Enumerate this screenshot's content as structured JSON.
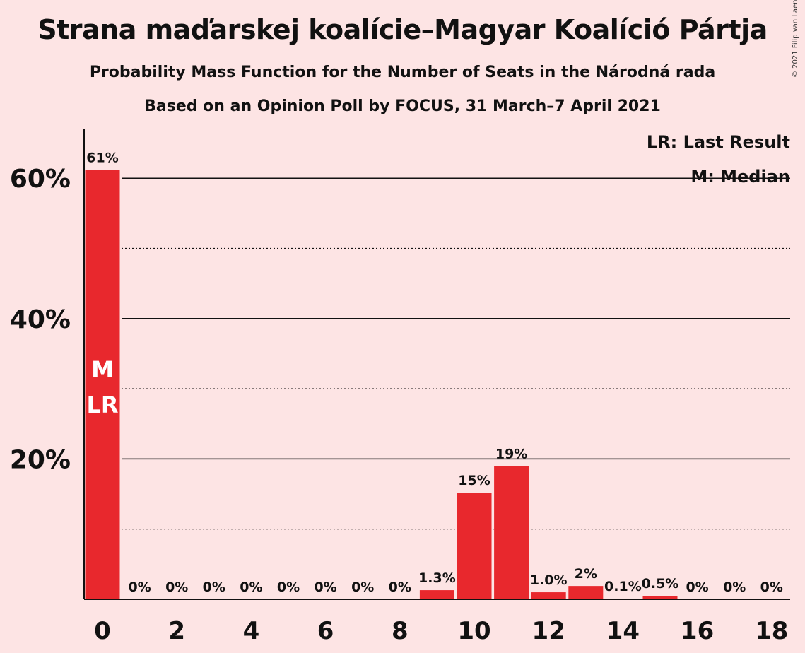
{
  "title": "Strana maďarskej koalície–Magyar Koalíció Pártja",
  "subtitle": "Probability Mass Function for the Number of Seats in the Národná rada",
  "source_line": "Based on an Opinion Poll by FOCUS, 31 March–7 April 2021",
  "copyright": "© 2021 Filip van Laenen",
  "legend": {
    "last_result": "LR: Last Result",
    "median": "M: Median"
  },
  "colors": {
    "bar": "#e8282d",
    "background": "#fde4e4",
    "text": "#111111"
  },
  "chart_data": {
    "type": "bar",
    "x": [
      0,
      1,
      2,
      3,
      4,
      5,
      6,
      7,
      8,
      9,
      10,
      11,
      12,
      13,
      14,
      15,
      16,
      17,
      18
    ],
    "values": [
      61.2,
      0,
      0,
      0,
      0,
      0,
      0,
      0,
      0,
      1.3,
      15.2,
      19.0,
      1.0,
      1.9,
      0.1,
      0.5,
      0,
      0,
      0
    ],
    "data_labels": [
      "61%",
      "0%",
      "0%",
      "0%",
      "0%",
      "0%",
      "0%",
      "0%",
      "0%",
      "1.3%",
      "15%",
      "19%",
      "1.0%",
      "2%",
      "0.1%",
      "0.5%",
      "0%",
      "0%",
      "0%"
    ],
    "x_tick_labels": [
      "0",
      "2",
      "4",
      "6",
      "8",
      "10",
      "12",
      "14",
      "16",
      "18"
    ],
    "x_ticks": [
      0,
      2,
      4,
      6,
      8,
      10,
      12,
      14,
      16,
      18
    ],
    "y_tick_labels": [
      "20%",
      "40%",
      "60%"
    ],
    "y_ticks": [
      20,
      40,
      60
    ],
    "y_minor_gridlines": [
      10,
      30,
      50
    ],
    "ylim": [
      0,
      67
    ],
    "grid": true,
    "legend_position": "top-right",
    "median_seat": 0,
    "last_result_seat": 0,
    "median_marker": "M",
    "last_result_marker": "LR"
  }
}
